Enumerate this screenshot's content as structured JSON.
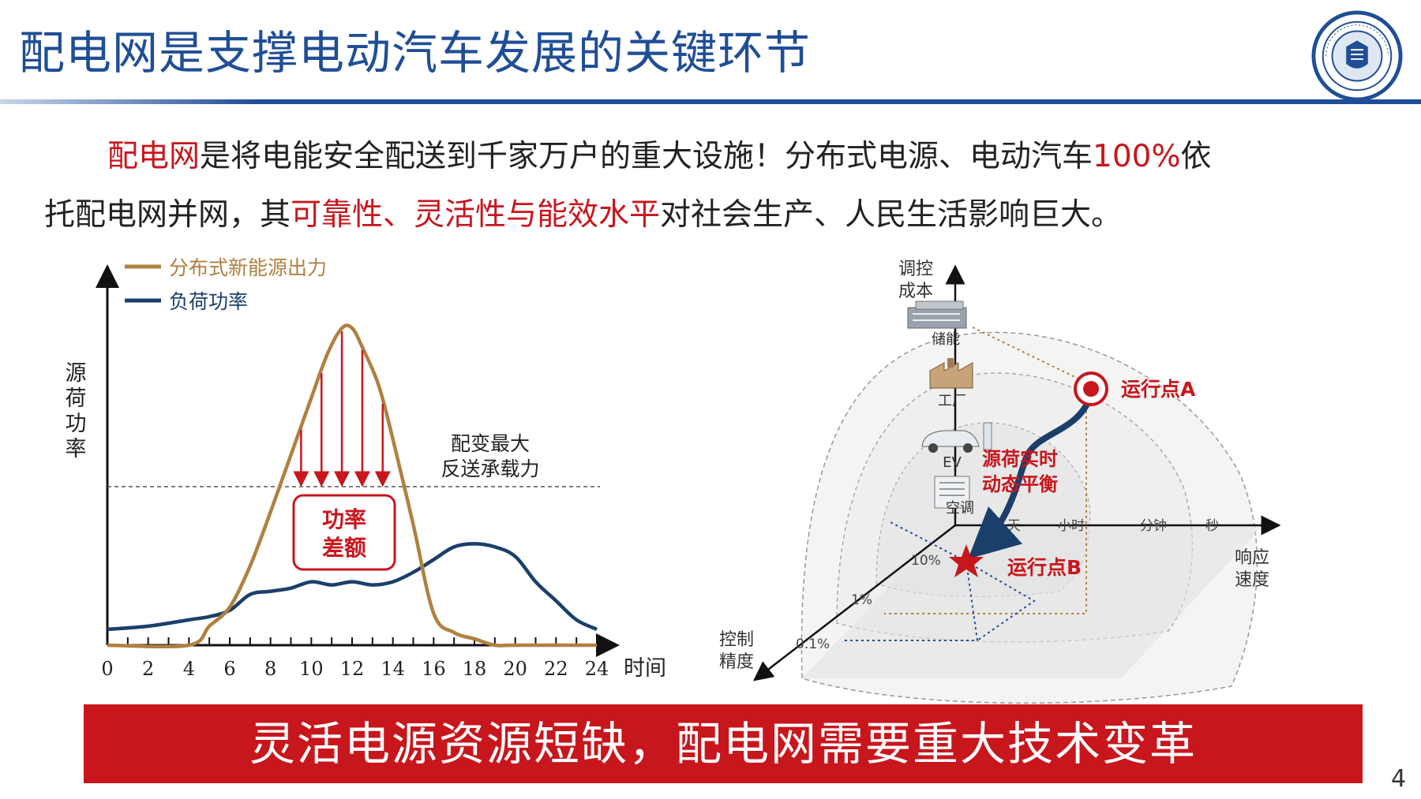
{
  "slide": {
    "title": "配电网是支撑电动汽车发展的关键环节",
    "page_number": "4",
    "banner": "灵活电源资源短缺，配电网需要重大技术变革",
    "accent_color": "#c8161d",
    "brand_color": "#1f4e96"
  },
  "intro": {
    "l1_red1": "配电网",
    "l1_text1": "是将电能安全配送到千家万户的重大设施！分布式电源、电动汽车",
    "l1_red2": "100%",
    "l1_text2": "依",
    "l2_text1": "托配电网并网，其",
    "l2_red1": "可靠性、灵活性与能效水平",
    "l2_text2": "对社会生产、人民生活影响巨大。"
  },
  "chart_data": {
    "type": "line",
    "ylabel": "源荷功率",
    "xlabel": "时间",
    "x_ticks": [
      "0",
      "2",
      "4",
      "6",
      "8",
      "10",
      "12",
      "14",
      "16",
      "18",
      "20",
      "22",
      "24"
    ],
    "xlim": [
      0,
      24
    ],
    "ylim": [
      0,
      100
    ],
    "grid": false,
    "legend_position": "top-left",
    "series": [
      {
        "name": "分布式新能源出力",
        "color": "#b08040",
        "x": [
          0,
          4,
          5,
          6,
          7,
          8,
          9,
          10,
          10.8,
          11.5,
          12,
          12.5,
          13.3,
          14,
          15,
          16,
          17,
          18,
          19,
          20,
          24
        ],
        "y": [
          0,
          0,
          6,
          12,
          25,
          42,
          60,
          78,
          92,
          100,
          100,
          94,
          82,
          65,
          38,
          10,
          4,
          2,
          0,
          0,
          0
        ]
      },
      {
        "name": "负荷功率",
        "color": "#1a3f6b",
        "x": [
          0,
          2,
          4,
          5,
          6,
          7,
          8,
          9,
          10,
          11,
          12,
          13,
          14,
          15,
          16,
          17,
          18,
          19,
          20,
          21,
          22,
          23,
          24
        ],
        "y": [
          5,
          6,
          8,
          9,
          11,
          16,
          17,
          18,
          20,
          19,
          20,
          19,
          20,
          23,
          27,
          31,
          32,
          31,
          28,
          20,
          14,
          8,
          5
        ]
      }
    ],
    "threshold": {
      "value": 50,
      "label_line1": "配变最大",
      "label_line2": "反送承载力"
    },
    "gap_annotation": {
      "line1": "功率",
      "line2": "差额",
      "arrow_x": [
        9.5,
        10.5,
        11.5,
        12.5,
        13.5
      ]
    }
  },
  "diagram3d": {
    "axis_cost": {
      "line1": "调控",
      "line2": "成本"
    },
    "axis_speed": {
      "line1": "响应",
      "line2": "速度"
    },
    "axis_precision": {
      "line1": "控制",
      "line2": "精度"
    },
    "resources": [
      "储能",
      "工厂",
      "EV",
      "空调"
    ],
    "speed_ticks": [
      "天",
      "小时",
      "分钟",
      "秒"
    ],
    "precision_ticks": [
      "10%",
      "1%",
      "0.1%"
    ],
    "point_a": "运行点A",
    "point_b": "运行点B",
    "balance": {
      "line1": "源荷实时",
      "line2": "动态平衡"
    }
  }
}
